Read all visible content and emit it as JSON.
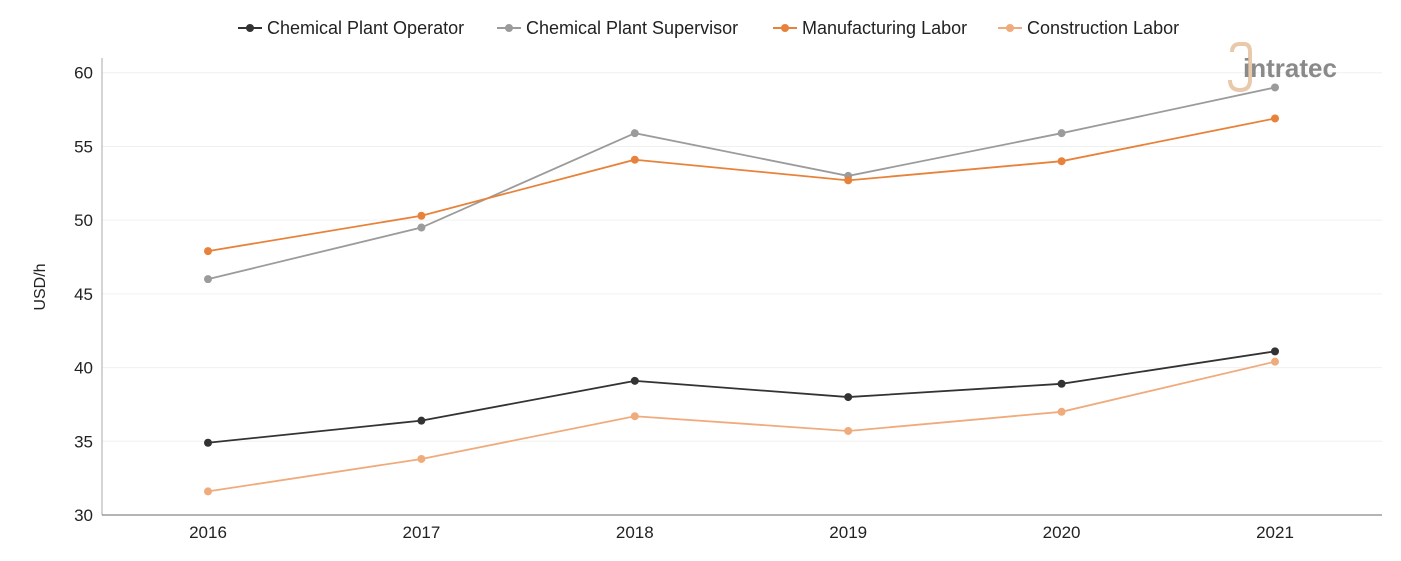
{
  "chart_data": {
    "type": "line",
    "title": "",
    "xlabel": "",
    "ylabel": "USD/h",
    "x": [
      "2016",
      "2017",
      "2018",
      "2019",
      "2020",
      "2021"
    ],
    "ylim": [
      30,
      61
    ],
    "yticks": [
      "30",
      "35",
      "40",
      "45",
      "50",
      "55",
      "60"
    ],
    "grid": "horizontal",
    "legend_position": "top-center",
    "series": [
      {
        "name": "Chemical Plant Operator",
        "color": "#333333",
        "values": [
          34.9,
          36.4,
          39.1,
          38.0,
          38.9,
          41.1
        ]
      },
      {
        "name": "Chemical Plant Supervisor",
        "color": "#9b9b9b",
        "values": [
          46.0,
          49.5,
          55.9,
          53.0,
          55.9,
          59.0
        ]
      },
      {
        "name": "Manufacturing Labor",
        "color": "#e8823a",
        "values": [
          47.9,
          50.3,
          54.1,
          52.7,
          54.0,
          56.9
        ]
      },
      {
        "name": "Construction Labor",
        "color": "#f0ab7c",
        "values": [
          31.6,
          33.8,
          36.7,
          35.7,
          37.0,
          40.4
        ]
      }
    ]
  },
  "watermark": {
    "text": "intratec"
  }
}
